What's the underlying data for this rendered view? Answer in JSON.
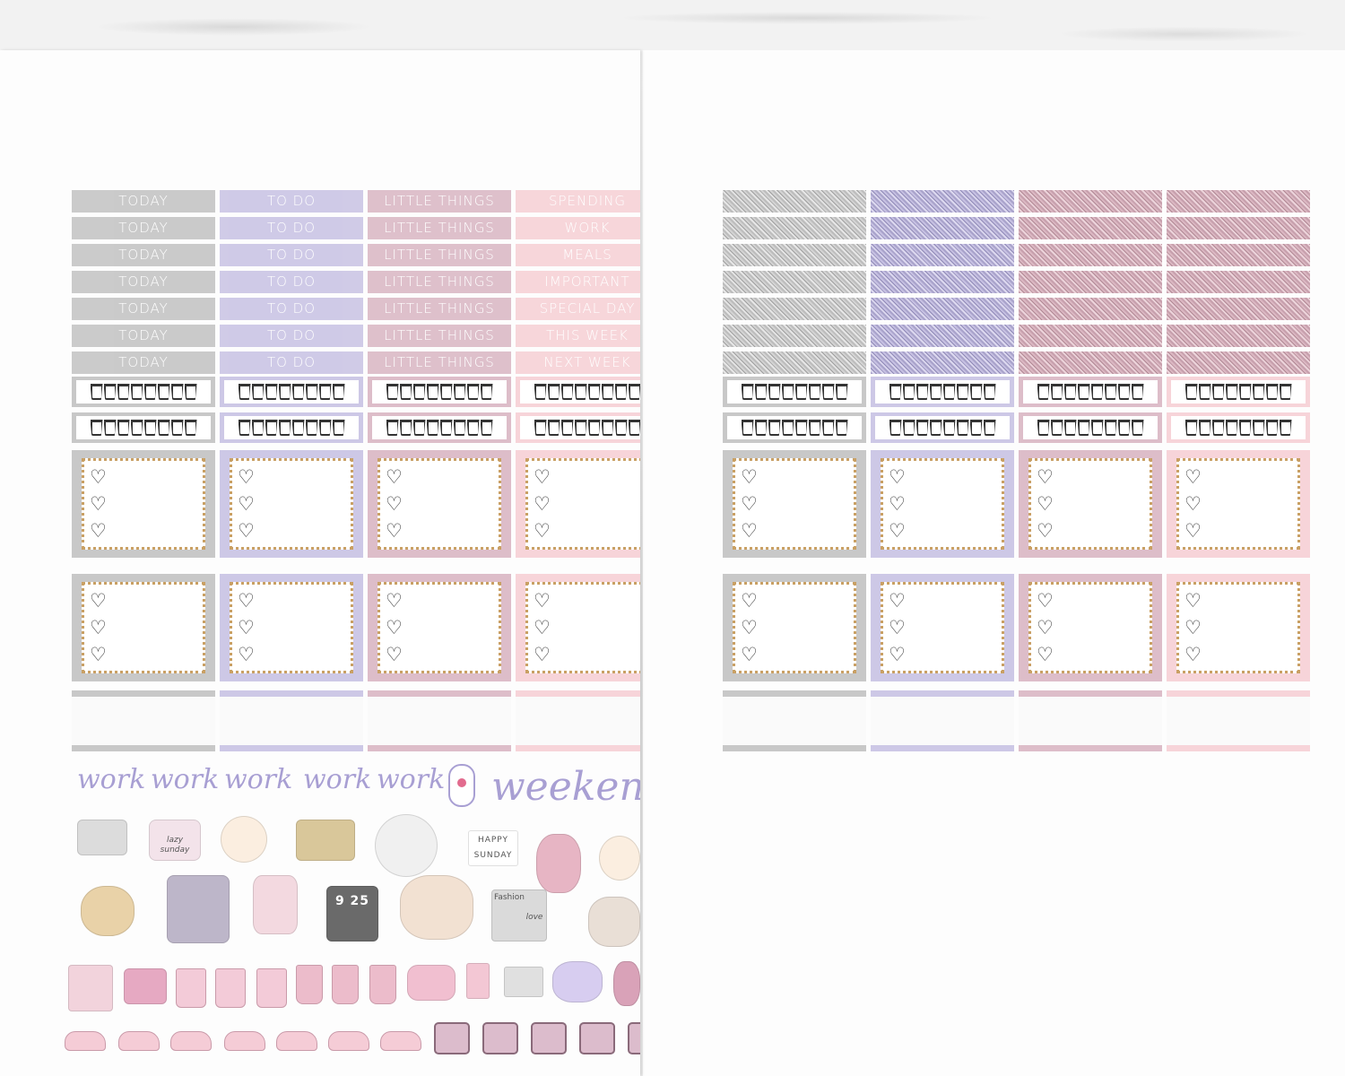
{
  "headers": {
    "col1": [
      "TODAY",
      "TODAY",
      "TODAY",
      "TODAY",
      "TODAY",
      "TODAY",
      "TODAY"
    ],
    "col2": [
      "TO DO",
      "TO DO",
      "TO DO",
      "TO DO",
      "TO DO",
      "TO DO",
      "TO DO"
    ],
    "col3": [
      "LITTLE THINGS",
      "LITTLE THINGS",
      "LITTLE THINGS",
      "LITTLE THINGS",
      "LITTLE THINGS",
      "LITTLE THINGS",
      "LITTLE THINGS"
    ],
    "col4": [
      "SPENDING",
      "WORK",
      "MEALS",
      "IMPORTANT",
      "SPECIAL DAY",
      "THIS WEEK",
      "NEXT WEEK"
    ]
  },
  "script_words": {
    "work": "work",
    "weekend": "weekend"
  },
  "lightbox": {
    "line1": "HAPPY",
    "line2": "SUNDAY"
  },
  "laptop_time": "9 25",
  "pillow_text": "lazy sunday",
  "magazine": {
    "fashion": "Fashion",
    "love": "love"
  },
  "colors": {
    "gray": "#c8c8c8",
    "lavender": "#cdc8e6",
    "mauve": "#ddbdc9",
    "pink": "#f7d4d9",
    "script": "#a89fd3",
    "gold_frame": "#c9a064"
  },
  "icons": [
    "tray-icon",
    "pillow-icon",
    "croissant-icon",
    "breakfast-tray-icon",
    "bagel-icon",
    "lightbox-icon",
    "flowers-icon",
    "cinnamon-roll-icon",
    "macaron-box-icon",
    "lingerie-icon",
    "laptop-icon",
    "coffee-pour-icon",
    "magazine-icon",
    "cat-icon",
    "envelope-icon",
    "printer-icon",
    "trash-can-icon",
    "coffee-cup-icon",
    "car-icon",
    "grocery-bag-icon",
    "monitor-icon",
    "bow-icon",
    "vacuum-icon",
    "sneaker-icon",
    "tv-icon"
  ]
}
